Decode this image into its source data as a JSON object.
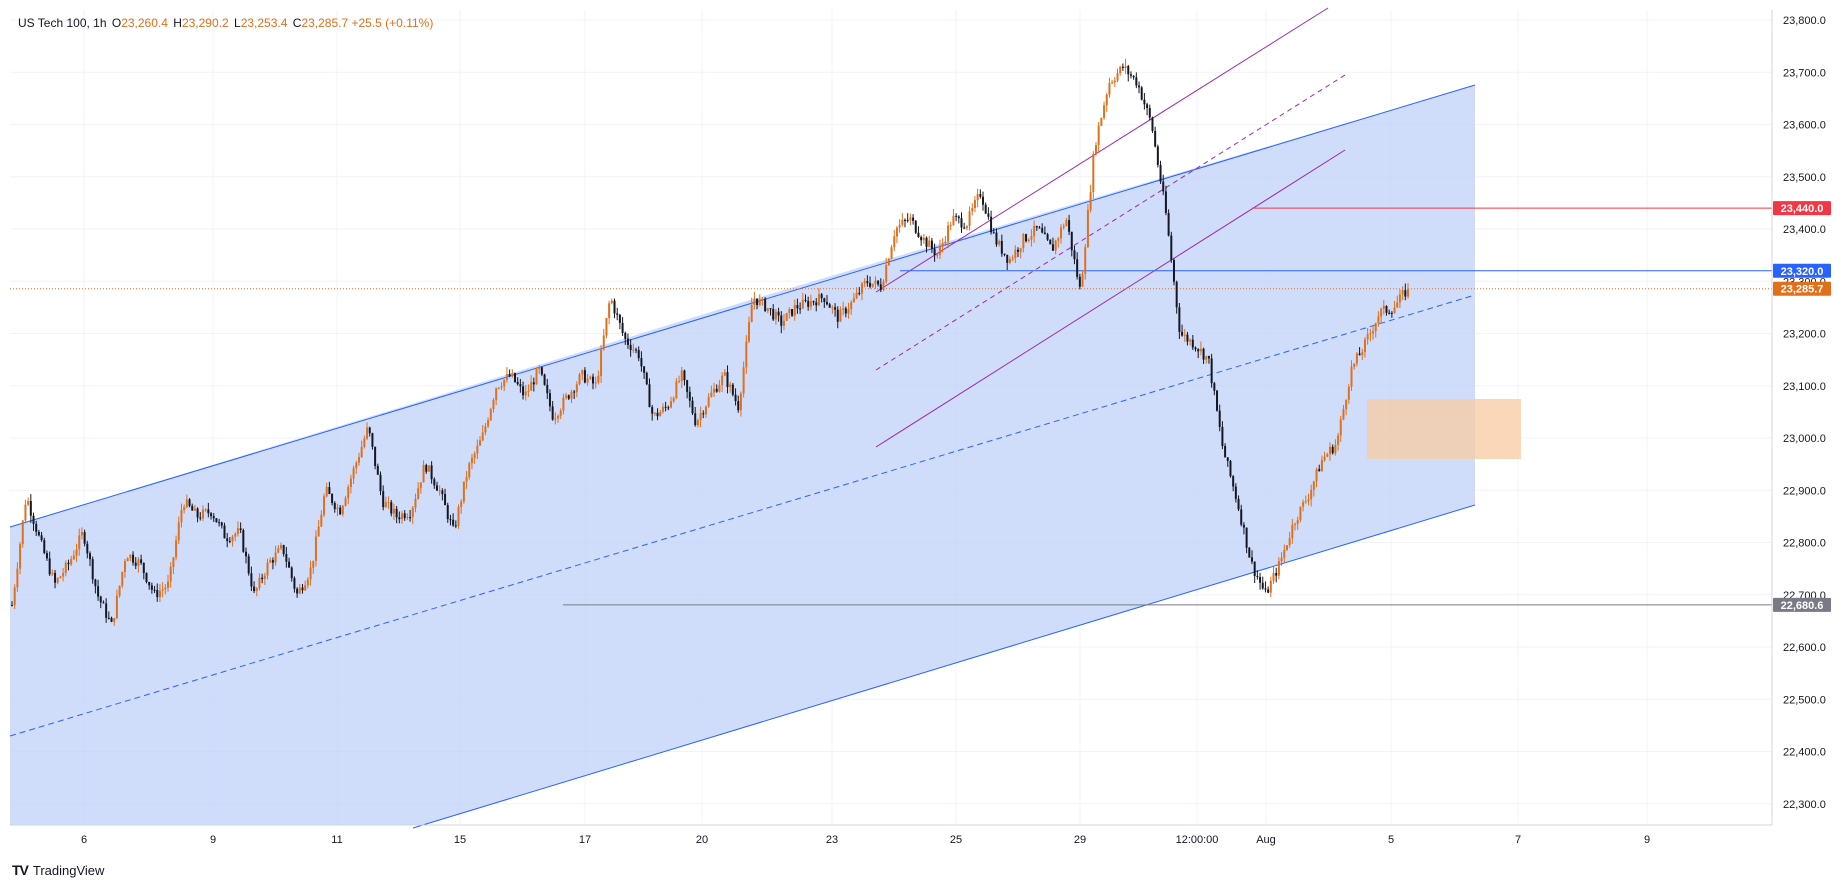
{
  "legend": {
    "symbol": "US Tech 100, 1h",
    "o_label": "O",
    "o_value": "23,260.4",
    "h_label": "H",
    "h_value": "23,290.2",
    "l_label": "L",
    "l_value": "23,253.4",
    "c_label": "C",
    "c_value": "23,285.7",
    "change": "+25.5 (+0.11%)"
  },
  "brand": {
    "name": "TradingView"
  },
  "colors": {
    "up": "#e0701c",
    "down": "#131722",
    "channel_line": "#2962ff",
    "channel_fill": "#bcd0f8",
    "wedge": "#9c27b0",
    "resistance": "#1e53e5",
    "resistance_red": "#f23645",
    "support": "#787b86",
    "fvg": "#f8c9a0"
  },
  "chart_data": {
    "type": "candlestick",
    "symbol": "US Tech 100",
    "timeframe": "1h",
    "xlabel": "",
    "ylabel": "",
    "ylim": [
      22240,
      23845
    ],
    "y_ticks": [
      "23,800.0",
      "23,700.0",
      "23,600.0",
      "23,500.0",
      "23,400.0",
      "23,300.0",
      "23,200.0",
      "23,100.0",
      "23,000.0",
      "22,900.0",
      "22,800.0",
      "22,700.0",
      "22,600.0",
      "22,500.0",
      "22,400.0",
      "22,300.0"
    ],
    "x_ticks": [
      "6",
      "9",
      "11",
      "15",
      "17",
      "20",
      "23",
      "25",
      "29",
      "12:00:00",
      "Aug",
      "5",
      "7",
      "9"
    ],
    "price_path": [
      [
        0,
        22680
      ],
      [
        1,
        22890
      ],
      [
        2,
        22800
      ],
      [
        3,
        22720
      ],
      [
        4,
        22760
      ],
      [
        5,
        22820
      ],
      [
        6,
        22700
      ],
      [
        7,
        22640
      ],
      [
        8,
        22780
      ],
      [
        9,
        22760
      ],
      [
        10,
        22700
      ],
      [
        11,
        22720
      ],
      [
        12,
        22880
      ],
      [
        13,
        22850
      ],
      [
        14,
        22860
      ],
      [
        15,
        22810
      ],
      [
        16,
        22820
      ],
      [
        17,
        22700
      ],
      [
        18,
        22760
      ],
      [
        19,
        22790
      ],
      [
        20,
        22700
      ],
      [
        21,
        22750
      ],
      [
        22,
        22900
      ],
      [
        23,
        22860
      ],
      [
        24,
        22940
      ],
      [
        25,
        23020
      ],
      [
        26,
        22880
      ],
      [
        27,
        22850
      ],
      [
        28,
        22860
      ],
      [
        29,
        22950
      ],
      [
        30,
        22900
      ],
      [
        31,
        22820
      ],
      [
        32,
        22940
      ],
      [
        33,
        23000
      ],
      [
        34,
        23100
      ],
      [
        35,
        23120
      ],
      [
        36,
        23080
      ],
      [
        37,
        23130
      ],
      [
        38,
        23040
      ],
      [
        39,
        23080
      ],
      [
        40,
        23120
      ],
      [
        41,
        23100
      ],
      [
        42,
        23270
      ],
      [
        43,
        23190
      ],
      [
        44,
        23160
      ],
      [
        45,
        23040
      ],
      [
        46,
        23060
      ],
      [
        47,
        23120
      ],
      [
        48,
        23030
      ],
      [
        49,
        23080
      ],
      [
        50,
        23120
      ],
      [
        51,
        23060
      ],
      [
        52,
        23270
      ],
      [
        53,
        23250
      ],
      [
        54,
        23220
      ],
      [
        55,
        23250
      ],
      [
        56,
        23260
      ],
      [
        57,
        23270
      ],
      [
        58,
        23230
      ],
      [
        59,
        23260
      ],
      [
        60,
        23300
      ],
      [
        61,
        23290
      ],
      [
        62,
        23400
      ],
      [
        63,
        23420
      ],
      [
        64,
        23380
      ],
      [
        65,
        23350
      ],
      [
        66,
        23420
      ],
      [
        67,
        23410
      ],
      [
        68,
        23470
      ],
      [
        69,
        23380
      ],
      [
        70,
        23340
      ],
      [
        71,
        23380
      ],
      [
        72,
        23400
      ],
      [
        73,
        23360
      ],
      [
        74,
        23420
      ],
      [
        75,
        23280
      ],
      [
        76,
        23560
      ],
      [
        77,
        23680
      ],
      [
        78,
        23710
      ],
      [
        79,
        23680
      ],
      [
        80,
        23600
      ],
      [
        81,
        23430
      ],
      [
        82,
        23200
      ],
      [
        83,
        23180
      ],
      [
        84,
        23150
      ],
      [
        85,
        22980
      ],
      [
        86,
        22880
      ],
      [
        87,
        22760
      ],
      [
        88,
        22700
      ],
      [
        89,
        22760
      ],
      [
        90,
        22840
      ],
      [
        91,
        22890
      ],
      [
        92,
        22960
      ],
      [
        93,
        22990
      ],
      [
        94,
        23130
      ],
      [
        95,
        23180
      ],
      [
        96,
        23240
      ],
      [
        97,
        23250
      ],
      [
        98,
        23285.7
      ]
    ],
    "annotations": {
      "horizontal_levels": [
        {
          "price": 23440.0,
          "label": "23,440.0",
          "color": "#f23645"
        },
        {
          "price": 23320.0,
          "label": "23,320.0",
          "color": "#2962ff"
        },
        {
          "price": 23285.7,
          "label": "23,285.7",
          "color": "#e0701c"
        },
        {
          "price": 22680.6,
          "label": "22,680.6",
          "color": "#787b86"
        }
      ],
      "ascending_channel": true,
      "rising_wedge": true,
      "gap_zone": [
        22970,
        23080
      ]
    }
  }
}
